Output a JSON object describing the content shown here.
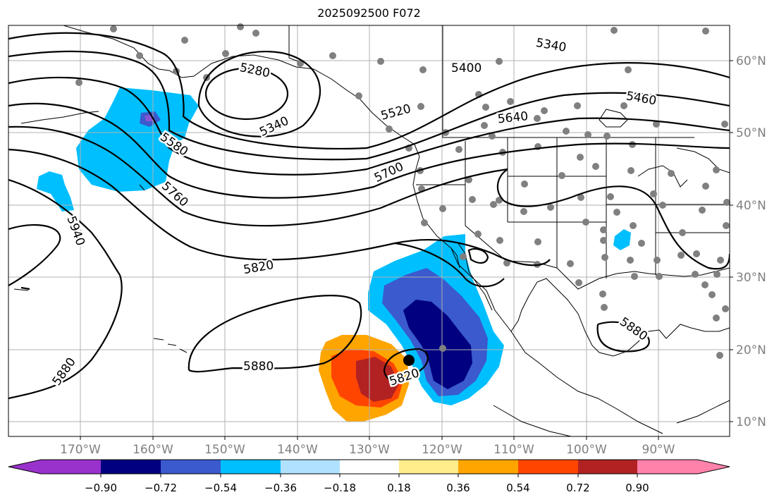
{
  "title": "2025092500 F072",
  "lon_labels": [
    "170°W",
    "160°W",
    "150°W",
    "140°W",
    "130°W",
    "120°W",
    "110°W",
    "100°W",
    "90°W"
  ],
  "lat_labels": [
    "60°N",
    "50°N",
    "40°N",
    "30°N",
    "20°N",
    "10°N"
  ],
  "contour_labels": [
    "5280",
    "5340",
    "5340",
    "5400",
    "5460",
    "5520",
    "5580",
    "5640",
    "5700",
    "5760",
    "5820",
    "5820",
    "5880",
    "5880",
    "5880",
    "5940"
  ],
  "colorbar": {
    "ticks": [
      "−0.90",
      "−0.72",
      "−0.54",
      "−0.36",
      "−0.18",
      "0.18",
      "0.36",
      "0.54",
      "0.72",
      "0.90"
    ],
    "colors": [
      "#9932cc",
      "#000080",
      "#3a5acd",
      "#00bfff",
      "#b0e2ff",
      "#ffffff",
      "#ffec8b",
      "#ffa500",
      "#ff4500",
      "#b22222",
      "#ff82ab"
    ]
  },
  "colors": {
    "light_blue": "#00bfff",
    "mid_blue": "#3a5acd",
    "navy": "#000080",
    "orange": "#ffa500",
    "red_orange": "#ff4500",
    "dark_red": "#b22222",
    "purple": "#8a55d0",
    "station_gray": "#808080",
    "grid": "#b0b0b0",
    "tick_label": "#808080"
  }
}
